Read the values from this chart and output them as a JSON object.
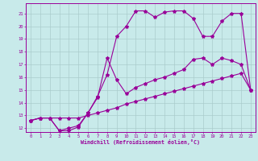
{
  "background_color": "#c8eaea",
  "grid_color": "#aacccc",
  "line_color": "#990099",
  "xlim": [
    -0.5,
    23.5
  ],
  "ylim": [
    11.7,
    21.8
  ],
  "xticks": [
    0,
    1,
    2,
    3,
    4,
    5,
    6,
    7,
    8,
    9,
    10,
    11,
    12,
    13,
    14,
    15,
    16,
    17,
    18,
    19,
    20,
    21,
    22,
    23
  ],
  "yticks": [
    12,
    13,
    14,
    15,
    16,
    17,
    18,
    19,
    20,
    21
  ],
  "xlabel": "Windchill (Refroidissement éolien,°C)",
  "curve_top_x": [
    0,
    1,
    2,
    3,
    4,
    5,
    6,
    7,
    8,
    9,
    10,
    11,
    12,
    13,
    14,
    15,
    16,
    17,
    18,
    19,
    20,
    21,
    22,
    23
  ],
  "curve_top_y": [
    12.6,
    12.8,
    12.8,
    11.8,
    11.8,
    12.1,
    13.2,
    14.5,
    16.2,
    19.2,
    20.0,
    21.2,
    21.2,
    20.7,
    21.1,
    21.2,
    21.2,
    20.6,
    19.2,
    19.2,
    20.4,
    21.0,
    21.0,
    15.0
  ],
  "curve_mid_x": [
    0,
    1,
    2,
    3,
    4,
    5,
    6,
    7,
    8,
    9,
    10,
    11,
    12,
    13,
    14,
    15,
    16,
    17,
    18,
    19,
    20,
    21,
    22,
    23
  ],
  "curve_mid_y": [
    12.6,
    12.8,
    12.8,
    11.8,
    12.0,
    12.2,
    13.2,
    14.4,
    17.5,
    15.8,
    14.7,
    15.2,
    15.5,
    15.8,
    16.0,
    16.3,
    16.6,
    17.4,
    17.5,
    17.0,
    17.5,
    17.3,
    17.0,
    15.0
  ],
  "curve_bot_x": [
    0,
    1,
    2,
    3,
    4,
    5,
    6,
    7,
    8,
    9,
    10,
    11,
    12,
    13,
    14,
    15,
    16,
    17,
    18,
    19,
    20,
    21,
    22,
    23
  ],
  "curve_bot_y": [
    12.6,
    12.8,
    12.8,
    12.8,
    12.8,
    12.8,
    13.0,
    13.2,
    13.4,
    13.6,
    13.9,
    14.1,
    14.3,
    14.5,
    14.7,
    14.9,
    15.1,
    15.3,
    15.5,
    15.7,
    15.9,
    16.1,
    16.3,
    15.0
  ]
}
